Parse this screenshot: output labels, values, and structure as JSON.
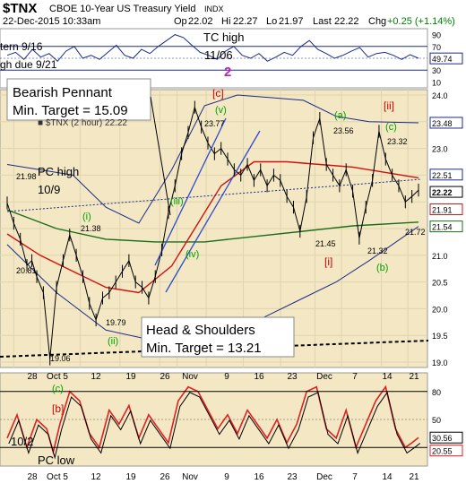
{
  "header": {
    "symbol": "$TNX",
    "name": "CBOE 10-Year US Treasury Yield",
    "exchange": "INDX",
    "datetime": "22-Dec-2015 10:33am",
    "op_label": "Op",
    "op": "22.02",
    "hi_label": "Hi",
    "hi": "22.27",
    "lo_label": "Lo",
    "lo": "21.97",
    "last_label": "Last",
    "last": "22.22",
    "chg_label": "Chg",
    "chg": "+0.25 (+1.14%)",
    "chg_color": "#008000"
  },
  "annotations": {
    "tc_high": "TC high",
    "tc_date": "11/06",
    "cycle_num": "2",
    "turn_916": "tern 9/16",
    "high_due": "gh due 9/21",
    "bearish_pennant_1": "Bearish Pennant",
    "bearish_pennant_2": "Min. Target = 15.09",
    "pc_high": "PC high",
    "pc_high_date": "10/9",
    "hs_1": "Head & Shoulders",
    "hs_2": "Min. Target = 13.21",
    "tnx_legend": "■ $TNX (2 hour) 22.22",
    "rsi_102": "10/2",
    "pc_low": "PC low"
  },
  "wave_labels": {
    "c_red": "[c]",
    "v": "(v)",
    "iii": "(iii)",
    "iv": "(iv)",
    "i": "(i)",
    "ii": "(ii)",
    "a": "(a)",
    "c": "(c)",
    "b": "(b)",
    "ii_red": "[ii]",
    "i_red": "[i]",
    "rsi_c": "(c)",
    "rsi_b": "[b]"
  },
  "price_labels": {
    "p2377": "23.77",
    "p2356": "23.56",
    "p2332": "23.32",
    "p2198": "21.98",
    "p2138": "21.38",
    "p2081": "20.81",
    "p1979": "19.79",
    "p1906": "19.06",
    "p2145": "21.45",
    "p2132": "21.32",
    "p2172": "21.72"
  },
  "right_axis_labels": {
    "top": [
      "90",
      "70",
      "49.74",
      "30",
      "10"
    ],
    "main": [
      "24.0",
      "23.48",
      "23.0",
      "22.51",
      "22.22",
      "21.91",
      "21.54",
      "21.0",
      "20.5",
      "20.0",
      "19.5",
      "19.0"
    ],
    "rsi": [
      "80",
      "50",
      "30.56",
      "20.55"
    ]
  },
  "x_axis_labels": [
    "28",
    "Oct 5",
    "12",
    "19",
    "26",
    "Nov",
    "9",
    "16",
    "23",
    "Dec",
    "7",
    "14",
    "21"
  ],
  "colors": {
    "panel_bg": "#f4e8c4",
    "price": "#000000",
    "ma_red": "#d01010",
    "ma_green": "#1a6e1a",
    "bb_blue": "#1a2a8a",
    "trend_blue": "#2a4ad0",
    "rsi_line": "#e02020",
    "label_green": "#00a000",
    "label_red": "#d00000",
    "hl_blue": "#1010d0"
  },
  "chart_data": {
    "type": "line",
    "title": "$TNX CBOE 10-Year US Treasury Yield INDX",
    "x_labels": [
      "28",
      "Oct 5",
      "12",
      "19",
      "26",
      "Nov",
      "9",
      "16",
      "23",
      "Dec",
      "7",
      "14",
      "21"
    ],
    "y_range": [
      18.9,
      24.1
    ],
    "rsi_range": [
      0,
      100
    ],
    "top_range": [
      0,
      100
    ],
    "grid": true,
    "price_series": {
      "name": "$TNX",
      "t": [
        0,
        4,
        8,
        12,
        15,
        18,
        22,
        26,
        30,
        34,
        38,
        42,
        46,
        50,
        54,
        58,
        62,
        66,
        70,
        74,
        78,
        82,
        86,
        90,
        94,
        98,
        102,
        106,
        110,
        114,
        118,
        122,
        126,
        130,
        134,
        138,
        142,
        146,
        150,
        154,
        158,
        162,
        166,
        170,
        174,
        178,
        182,
        186,
        190,
        194,
        198,
        202,
        206,
        210,
        214,
        218,
        222,
        226,
        230,
        234,
        238,
        242,
        246,
        250
      ],
      "values": [
        21.98,
        21.6,
        21.3,
        20.81,
        20.9,
        20.6,
        20.3,
        19.06,
        20.4,
        20.9,
        21.38,
        21.0,
        20.6,
        20.1,
        19.79,
        20.2,
        20.3,
        20.5,
        20.7,
        20.9,
        20.5,
        20.4,
        20.2,
        20.6,
        21.1,
        21.8,
        22.3,
        22.9,
        23.3,
        23.77,
        23.4,
        23.1,
        22.9,
        23.0,
        22.8,
        22.6,
        22.5,
        22.7,
        22.4,
        22.6,
        22.3,
        22.5,
        22.4,
        22.1,
        21.9,
        21.45,
        22.1,
        23.2,
        23.56,
        22.7,
        22.5,
        22.3,
        22.6,
        22.2,
        21.32,
        21.9,
        22.4,
        23.32,
        22.8,
        22.5,
        22.3,
        22.0,
        22.1,
        22.22
      ]
    },
    "ma_red": {
      "name": "MA red",
      "t": [
        0,
        20,
        40,
        60,
        80,
        100,
        110,
        130,
        150,
        170,
        190,
        210,
        230,
        250
      ],
      "values": [
        21.4,
        21.0,
        20.7,
        20.4,
        20.3,
        20.8,
        21.3,
        22.3,
        22.75,
        22.75,
        22.7,
        22.65,
        22.55,
        22.45
      ]
    },
    "ma_green": {
      "name": "MA green",
      "t": [
        0,
        30,
        60,
        90,
        120,
        150,
        180,
        210,
        250
      ],
      "values": [
        21.85,
        21.5,
        21.3,
        21.25,
        21.25,
        21.35,
        21.45,
        21.55,
        21.62
      ]
    },
    "bb_upper": {
      "name": "BB upper",
      "t": [
        0,
        20,
        40,
        60,
        80,
        100,
        120,
        140,
        160,
        180,
        200,
        220,
        250
      ],
      "values": [
        22.7,
        22.6,
        22.5,
        21.9,
        21.6,
        22.6,
        23.8,
        24.0,
        23.95,
        23.9,
        23.6,
        23.5,
        23.48
      ]
    },
    "bb_lower": {
      "name": "BB lower",
      "t": [
        0,
        30,
        60,
        90,
        120,
        140,
        160,
        180,
        200,
        220,
        250
      ],
      "values": [
        21.2,
        20.3,
        19.6,
        19.4,
        19.5,
        19.6,
        19.9,
        20.2,
        20.5,
        20.9,
        21.54
      ]
    },
    "rsi": {
      "name": "RSI",
      "t": [
        0,
        6,
        12,
        18,
        24,
        28,
        32,
        38,
        44,
        50,
        56,
        62,
        68,
        74,
        80,
        86,
        92,
        98,
        104,
        110,
        116,
        122,
        128,
        134,
        140,
        146,
        152,
        158,
        164,
        170,
        176,
        182,
        188,
        194,
        200,
        206,
        212,
        218,
        224,
        230,
        236,
        242,
        246,
        250
      ],
      "values": [
        30,
        55,
        20,
        50,
        40,
        15,
        45,
        80,
        70,
        35,
        20,
        60,
        45,
        65,
        30,
        55,
        40,
        25,
        70,
        85,
        80,
        60,
        40,
        55,
        35,
        60,
        45,
        30,
        50,
        25,
        45,
        80,
        85,
        40,
        30,
        60,
        20,
        45,
        70,
        85,
        40,
        20,
        25,
        30.56
      ]
    }
  }
}
